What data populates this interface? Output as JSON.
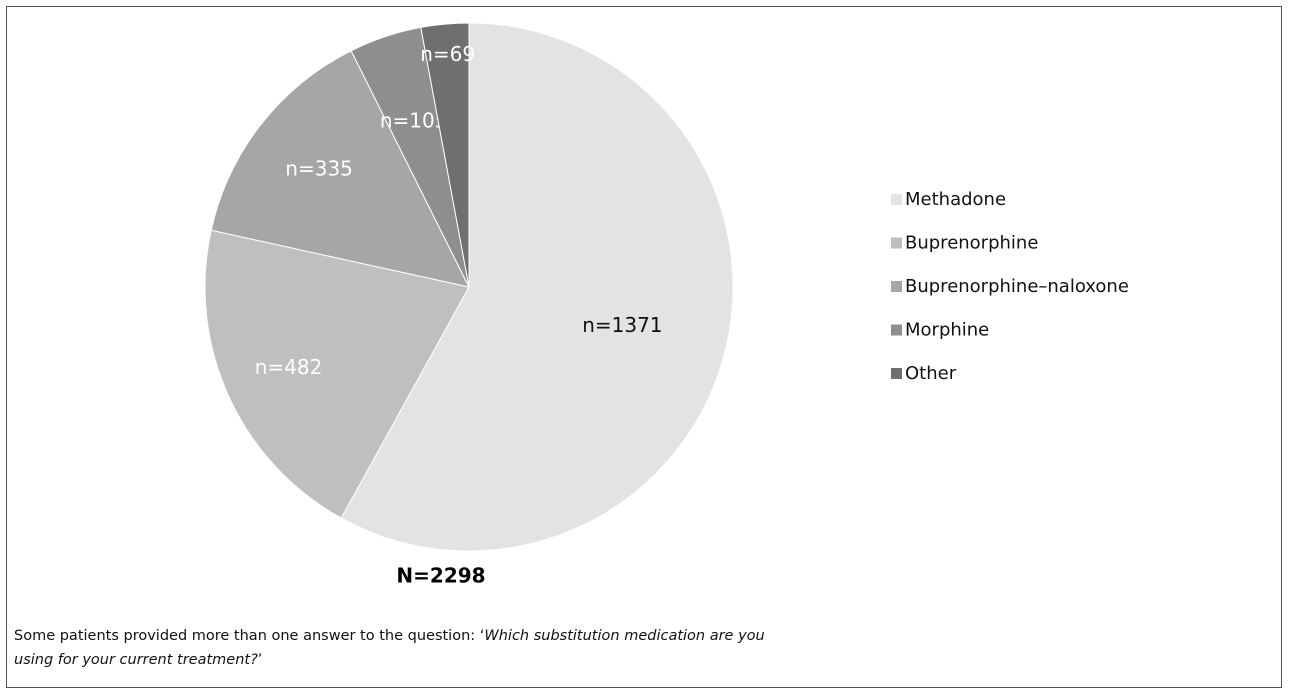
{
  "chart_data": {
    "type": "pie",
    "categories": [
      "Methadone",
      "Buprenorphine",
      "Buprenorphine–naloxone",
      "Morphine",
      "Other"
    ],
    "values": [
      1371,
      482,
      335,
      105,
      69
    ],
    "value_labels": [
      "n=1371",
      "n=482",
      "n=335",
      "n=105",
      "n=69"
    ],
    "colors": [
      "#e3e3e3",
      "#bfbfbf",
      "#a6a6a6",
      "#8e8e8e",
      "#6f6f6f"
    ],
    "total_label": "N=2298",
    "legend": "right"
  },
  "caption": {
    "text": "Some patients provided more than one answer to the question: ‘",
    "question": "Which substitution medication are you using for your current treatment?",
    "end": "’"
  }
}
